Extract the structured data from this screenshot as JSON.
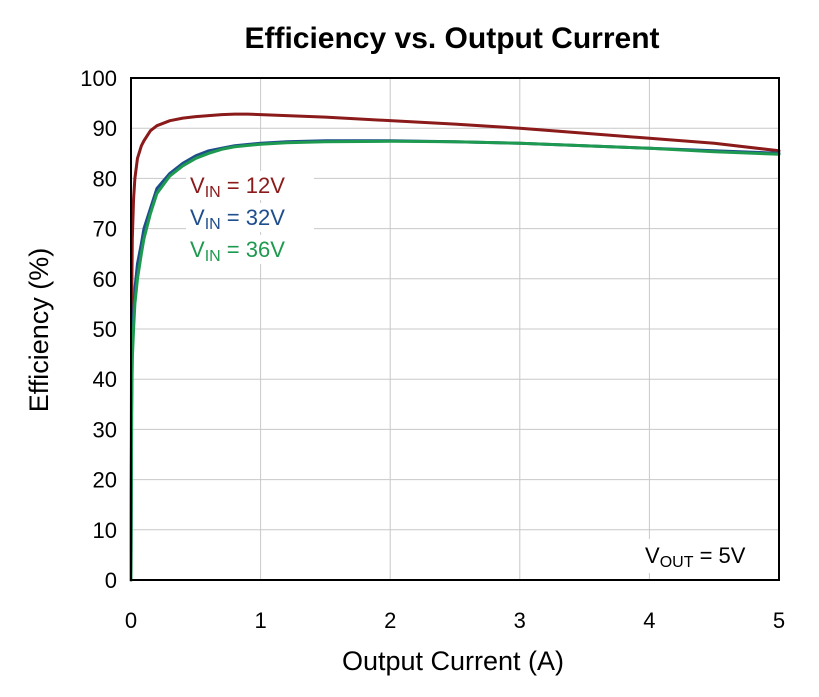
{
  "chart_data": {
    "type": "line",
    "title": "Efficiency vs. Output Current",
    "xlabel": "Output Current (A)",
    "ylabel": "Efficiency (%)",
    "xlim": [
      0,
      5
    ],
    "ylim": [
      0,
      100
    ],
    "xticks": [
      0,
      1,
      2,
      3,
      4,
      5
    ],
    "yticks": [
      0,
      10,
      20,
      30,
      40,
      50,
      60,
      70,
      80,
      90,
      100
    ],
    "grid": true,
    "annotation": {
      "main": "V",
      "sub": "OUT",
      "rest": " =  5V"
    },
    "series": [
      {
        "name": "VIN = 12V",
        "label_main": "V",
        "label_sub": "IN",
        "label_rest": " =  12V",
        "color": "#8b1a1a",
        "x": [
          0,
          0.005,
          0.01,
          0.02,
          0.03,
          0.05,
          0.08,
          0.1,
          0.15,
          0.2,
          0.3,
          0.4,
          0.5,
          0.6,
          0.7,
          0.8,
          0.9,
          1.0,
          1.2,
          1.5,
          2.0,
          2.5,
          3.0,
          3.5,
          4.0,
          4.5,
          5.0
        ],
        "y": [
          0,
          55,
          68,
          76,
          80,
          84,
          86.5,
          87.5,
          89.5,
          90.5,
          91.5,
          92,
          92.3,
          92.5,
          92.7,
          92.8,
          92.8,
          92.7,
          92.5,
          92.2,
          91.5,
          90.8,
          90,
          89,
          88,
          87,
          85.5
        ]
      },
      {
        "name": "VIN = 32V",
        "label_main": "V",
        "label_sub": "IN",
        "label_rest": " =  32V",
        "color": "#1f4e8c",
        "x": [
          0,
          0.005,
          0.01,
          0.02,
          0.03,
          0.05,
          0.08,
          0.1,
          0.15,
          0.2,
          0.3,
          0.4,
          0.5,
          0.6,
          0.7,
          0.8,
          1.0,
          1.2,
          1.5,
          2.0,
          2.5,
          3.0,
          3.5,
          4.0,
          4.5,
          5.0
        ],
        "y": [
          0,
          36,
          46,
          53,
          58,
          63,
          67,
          70,
          74,
          78,
          81,
          83,
          84.5,
          85.5,
          86,
          86.5,
          87,
          87.3,
          87.5,
          87.5,
          87.3,
          87,
          86.5,
          86,
          85.5,
          85
        ]
      },
      {
        "name": "VIN = 36V",
        "label_main": "V",
        "label_sub": "IN",
        "label_rest": " =  36V",
        "color": "#1e9a50",
        "x": [
          0,
          0.005,
          0.01,
          0.02,
          0.03,
          0.05,
          0.08,
          0.1,
          0.15,
          0.2,
          0.3,
          0.4,
          0.5,
          0.6,
          0.7,
          0.8,
          1.0,
          1.2,
          1.5,
          2.0,
          2.5,
          3.0,
          3.5,
          4.0,
          4.5,
          5.0
        ],
        "y": [
          0,
          33,
          44,
          50,
          55,
          60,
          65,
          68,
          73,
          77,
          80.5,
          82.5,
          84,
          85,
          85.8,
          86.3,
          86.8,
          87.1,
          87.3,
          87.4,
          87.3,
          87,
          86.5,
          86,
          85.3,
          84.8
        ]
      }
    ]
  }
}
